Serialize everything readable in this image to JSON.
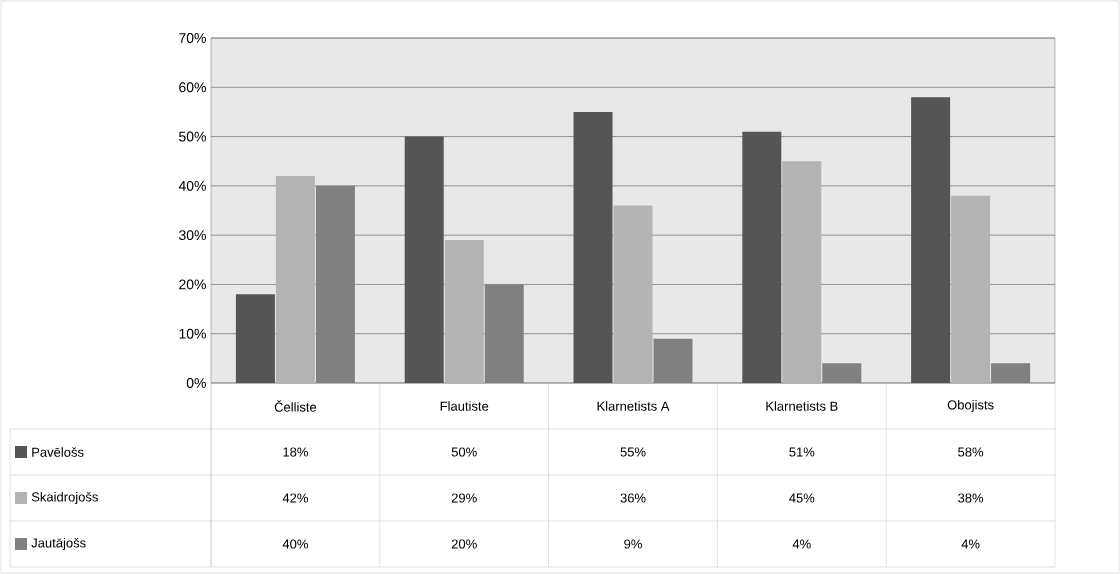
{
  "chart_data": {
    "type": "bar",
    "categories": [
      "Čelliste",
      "Flautiste",
      "Klarnetists A",
      "Klarnetists B",
      "Obojists"
    ],
    "series": [
      {
        "name": "Pavēlošs",
        "color": "#555555",
        "values": [
          18,
          50,
          55,
          51,
          58
        ],
        "value_labels": [
          "18%",
          "50%",
          "55%",
          "51%",
          "58%"
        ]
      },
      {
        "name": "Skaidrojošs",
        "color": "#b3b3b3",
        "values": [
          42,
          29,
          36,
          45,
          38
        ],
        "value_labels": [
          "42%",
          "29%",
          "36%",
          "45%",
          "38%"
        ]
      },
      {
        "name": "Jautājošs",
        "color": "#808080",
        "values": [
          40,
          20,
          9,
          4,
          4
        ],
        "value_labels": [
          "40%",
          "20%",
          "9%",
          "4%",
          "4%"
        ]
      }
    ],
    "ylim": [
      0,
      70
    ],
    "yticks": [
      {
        "value": 0,
        "label": "0%"
      },
      {
        "value": 10,
        "label": "10%"
      },
      {
        "value": 20,
        "label": "20%"
      },
      {
        "value": 30,
        "label": "30%"
      },
      {
        "value": 40,
        "label": "40%"
      },
      {
        "value": 50,
        "label": "50%"
      },
      {
        "value": 60,
        "label": "60%"
      },
      {
        "value": 70,
        "label": "70%"
      }
    ],
    "grid": "y",
    "legend": "bottom left"
  }
}
